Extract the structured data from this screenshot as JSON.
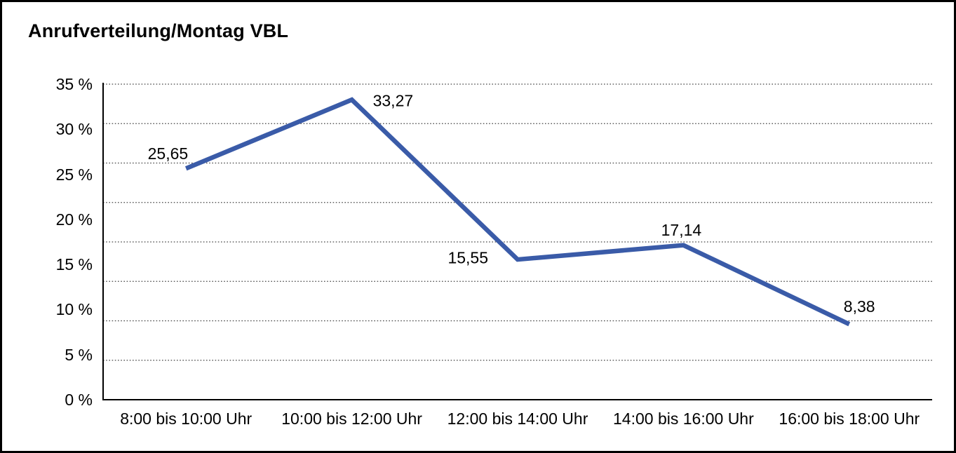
{
  "window": {
    "background_color": "#ffffff",
    "frame_color": "#000000"
  },
  "chart_data": {
    "type": "line",
    "title": "Anrufverteilung/Montag VBL",
    "categories": [
      "8:00 bis 10:00 Uhr",
      "10:00 bis 12:00 Uhr",
      "12:00 bis 14:00 Uhr",
      "14:00 bis 16:00 Uhr",
      "16:00 bis 18:00 Uhr"
    ],
    "values": [
      25.65,
      33.27,
      15.55,
      17.14,
      8.38
    ],
    "value_labels": [
      "25,65",
      "33,27",
      "15,55",
      "17,14",
      "8,38"
    ],
    "xlabel": "",
    "ylabel": "",
    "ylim": [
      0,
      35
    ],
    "y_tick_step": 5,
    "y_tick_labels": [
      "0 %",
      "5 %",
      "10 %",
      "15 %",
      "20 %",
      "25 %",
      "30 %",
      "35 %"
    ],
    "grid": "horizontal-dotted",
    "grid_divisions": 8,
    "legend": "none",
    "line_color": "#3A5BA8",
    "axis_color": "#000000",
    "gridline_color": "#444444",
    "text_color": "#000000"
  }
}
